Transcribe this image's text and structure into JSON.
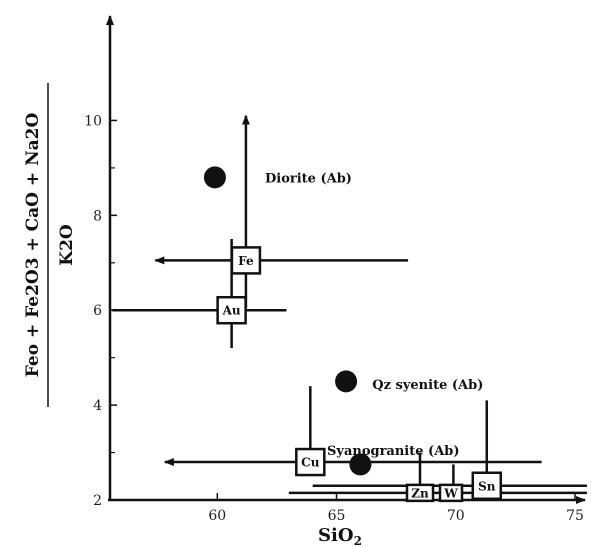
{
  "chart_data": {
    "type": "scatter",
    "title": "",
    "xlabel": "SiO",
    "xlabel_sub": "2",
    "ylabel_numerator": "Feo + Fe2O3 + CaO + Na2O",
    "ylabel_denominator": "K2O",
    "xlim": [
      55.5,
      75
    ],
    "ylim": [
      2,
      11
    ],
    "xticks": [
      60,
      65,
      70,
      75
    ],
    "yticks": [
      2,
      4,
      6,
      8,
      10
    ],
    "grid": false,
    "points": [
      {
        "x": 59.9,
        "y": 8.8
      },
      {
        "x": 65.4,
        "y": 4.5
      },
      {
        "x": 66.0,
        "y": 2.75
      }
    ],
    "annotations": [
      {
        "text": "Diorite (Ab)",
        "x": 62.0,
        "y": 8.8
      },
      {
        "text": "Qz syenite (Ab)",
        "x": 66.5,
        "y": 4.45
      },
      {
        "text": "Syanogranite (Ab)",
        "x": 64.6,
        "y": 3.05
      }
    ],
    "element_boxes": [
      {
        "label": "Fe",
        "x": 61.2,
        "y": 7.05,
        "lines": [
          {
            "x1": 61.2,
            "y1": 7.05,
            "x2": 57.4,
            "y2": 7.05,
            "arrow": true
          },
          {
            "x1": 61.2,
            "y1": 7.05,
            "x2": 68.0,
            "y2": 7.05,
            "arrow": false
          },
          {
            "x1": 61.2,
            "y1": 6.05,
            "x2": 61.2,
            "y2": 10.1,
            "arrow": true
          }
        ]
      },
      {
        "label": "Au",
        "x": 60.6,
        "y": 6.0,
        "lines": [
          {
            "x1": 55.6,
            "y1": 6.0,
            "x2": 62.9,
            "y2": 6.0,
            "arrow": false
          },
          {
            "x1": 60.6,
            "y1": 5.2,
            "x2": 60.6,
            "y2": 7.5,
            "arrow": false
          }
        ]
      },
      {
        "label": "Cu",
        "x": 63.9,
        "y": 2.8,
        "lines": [
          {
            "x1": 63.9,
            "y1": 2.8,
            "x2": 57.8,
            "y2": 2.8,
            "arrow": true
          },
          {
            "x1": 63.9,
            "y1": 2.8,
            "x2": 73.6,
            "y2": 2.8,
            "arrow": false
          },
          {
            "x1": 63.9,
            "y1": 2.8,
            "x2": 63.9,
            "y2": 4.4,
            "arrow": false
          }
        ]
      },
      {
        "label": "Zn",
        "x": 68.5,
        "y": 2.15,
        "lines": [
          {
            "x1": 68.5,
            "y1": 2.15,
            "x2": 68.5,
            "y2": 3.0,
            "arrow": false
          }
        ]
      },
      {
        "label": "W",
        "x": 69.8,
        "y": 2.15,
        "lines": [
          {
            "x1": 69.9,
            "y1": 2.15,
            "x2": 69.9,
            "y2": 2.75,
            "arrow": false
          }
        ]
      },
      {
        "label": "Sn",
        "x": 71.3,
        "y": 2.3,
        "lines": [
          {
            "x1": 71.3,
            "y1": 2.3,
            "x2": 71.3,
            "y2": 4.1,
            "arrow": false
          },
          {
            "x1": 64.0,
            "y1": 2.3,
            "x2": 75.5,
            "y2": 2.3,
            "arrow": false
          }
        ]
      }
    ],
    "extra_lines": [
      {
        "x1": 63.0,
        "y1": 2.15,
        "x2": 75.5,
        "y2": 2.15,
        "arrow": false
      }
    ]
  }
}
